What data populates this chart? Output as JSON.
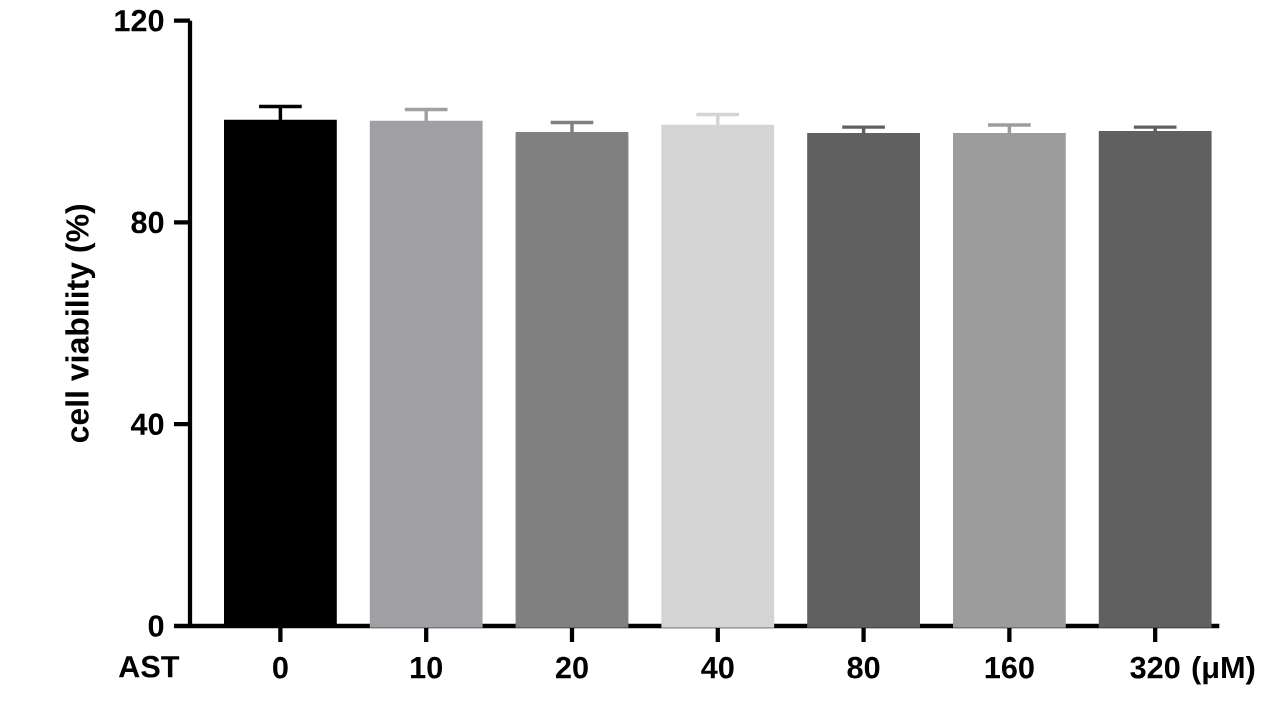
{
  "chart_data": {
    "type": "bar",
    "ylabel": "cell viability (%)",
    "categories": [
      "0",
      "10",
      "20",
      "40",
      "80",
      "160",
      "320"
    ],
    "values": [
      100,
      99.8,
      97.6,
      99,
      97.4,
      97.4,
      97.8
    ],
    "errors": [
      3,
      2.6,
      2.2,
      2.4,
      1.5,
      1.9,
      1.1
    ],
    "colors": [
      "#000000",
      "#a0a0a4",
      "#808080",
      "#d4d4d4",
      "#606060",
      "#9c9c9c",
      "#606060"
    ],
    "ylim": [
      0,
      120
    ],
    "yticks": [
      0,
      40,
      80,
      120
    ],
    "grid": false,
    "annotations": [
      "AST",
      "(μM)"
    ]
  }
}
